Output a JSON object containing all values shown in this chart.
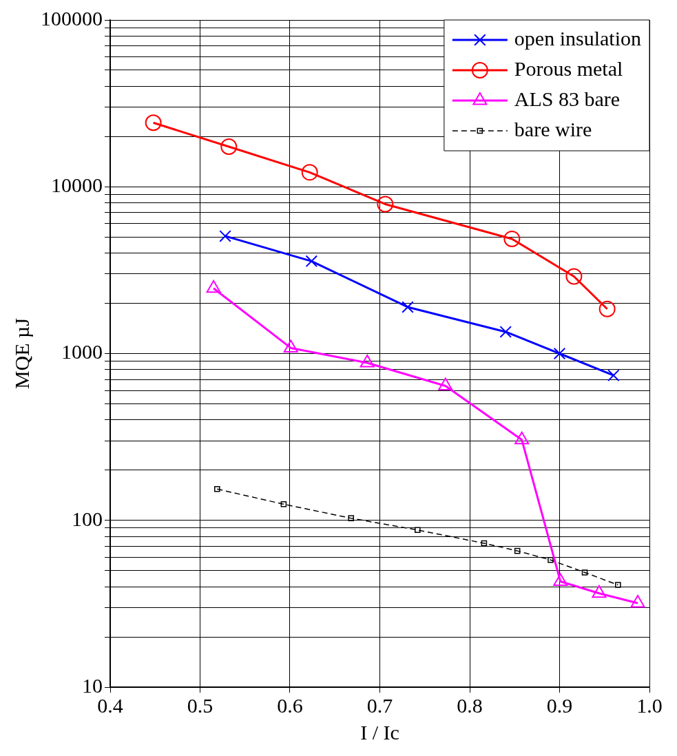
{
  "chart_data": {
    "type": "line",
    "xlabel": "I / Ic",
    "ylabel": "MQE µJ",
    "log": "y",
    "grid": true,
    "legend": "top right",
    "xlim": [
      0.4,
      1.0
    ],
    "xticks": [
      {
        "value": 0.4,
        "label": "0.4"
      },
      {
        "value": 0.5,
        "label": "0.5"
      },
      {
        "value": 0.6,
        "label": "0.6"
      },
      {
        "value": 0.7,
        "label": "0.7"
      },
      {
        "value": 0.8,
        "label": "0.8"
      },
      {
        "value": 0.9,
        "label": "0.9"
      },
      {
        "value": 1.0,
        "label": "1.0"
      }
    ],
    "ylim": [
      10,
      100000
    ],
    "yticks": [
      10,
      {
        "value": 20,
        "label": null
      },
      {
        "value": 30,
        "label": null
      },
      {
        "value": 40,
        "label": null
      },
      {
        "value": 50,
        "label": null
      },
      {
        "value": 60,
        "label": null
      },
      {
        "value": 70,
        "label": null
      },
      {
        "value": 80,
        "label": null
      },
      {
        "value": 90,
        "label": null
      },
      100,
      {
        "value": 200,
        "label": null
      },
      {
        "value": 300,
        "label": null
      },
      {
        "value": 400,
        "label": null
      },
      {
        "value": 500,
        "label": null
      },
      {
        "value": 600,
        "label": null
      },
      {
        "value": 700,
        "label": null
      },
      {
        "value": 800,
        "label": null
      },
      {
        "value": 900,
        "label": null
      },
      1000,
      {
        "value": 2000,
        "label": null
      },
      {
        "value": 3000,
        "label": null
      },
      {
        "value": 4000,
        "label": null
      },
      {
        "value": 5000,
        "label": null
      },
      {
        "value": 6000,
        "label": null
      },
      {
        "value": 7000,
        "label": null
      },
      {
        "value": 8000,
        "label": null
      },
      {
        "value": 9000,
        "label": null
      },
      10000,
      {
        "value": 20000,
        "label": null
      },
      {
        "value": 30000,
        "label": null
      },
      {
        "value": 40000,
        "label": null
      },
      {
        "value": 50000,
        "label": null
      },
      {
        "value": 60000,
        "label": null
      },
      {
        "value": 70000,
        "label": null
      },
      {
        "value": 80000,
        "label": null
      },
      {
        "value": 90000,
        "label": null
      },
      100000
    ],
    "series": [
      {
        "name": "open insulation",
        "color": "#0000ff",
        "marker": "cross",
        "line_style": "solid",
        "x": [
          0.528,
          0.624,
          0.731,
          0.84,
          0.9,
          0.96
        ],
        "values": [
          5060,
          3580,
          1900,
          1350,
          1000,
          740
        ]
      },
      {
        "name": "Porous metal",
        "color": "#ff0000",
        "marker": "circle",
        "line_style": "solid",
        "x": [
          0.448,
          0.532,
          0.622,
          0.706,
          0.847,
          0.916,
          0.953
        ],
        "values": [
          24200,
          17400,
          12200,
          7870,
          4870,
          2900,
          1850
        ]
      },
      {
        "name": "ALS 83 bare",
        "color": "#ff00ff",
        "marker": "triangle",
        "line_style": "solid",
        "x": [
          0.515,
          0.601,
          0.686,
          0.773,
          0.858,
          0.901,
          0.944,
          0.987
        ],
        "values": [
          2460,
          1080,
          880,
          640,
          304,
          43,
          36.5,
          31.9
        ]
      },
      {
        "name": "bare wire",
        "color": "#000000",
        "marker": "square",
        "line_style": "dashed",
        "x": [
          0.519,
          0.593,
          0.668,
          0.742,
          0.816,
          0.853,
          0.89,
          0.928,
          0.965
        ],
        "values": [
          154,
          125,
          103,
          87.5,
          72.9,
          65.6,
          57.9,
          48.7,
          41.0
        ]
      }
    ]
  }
}
